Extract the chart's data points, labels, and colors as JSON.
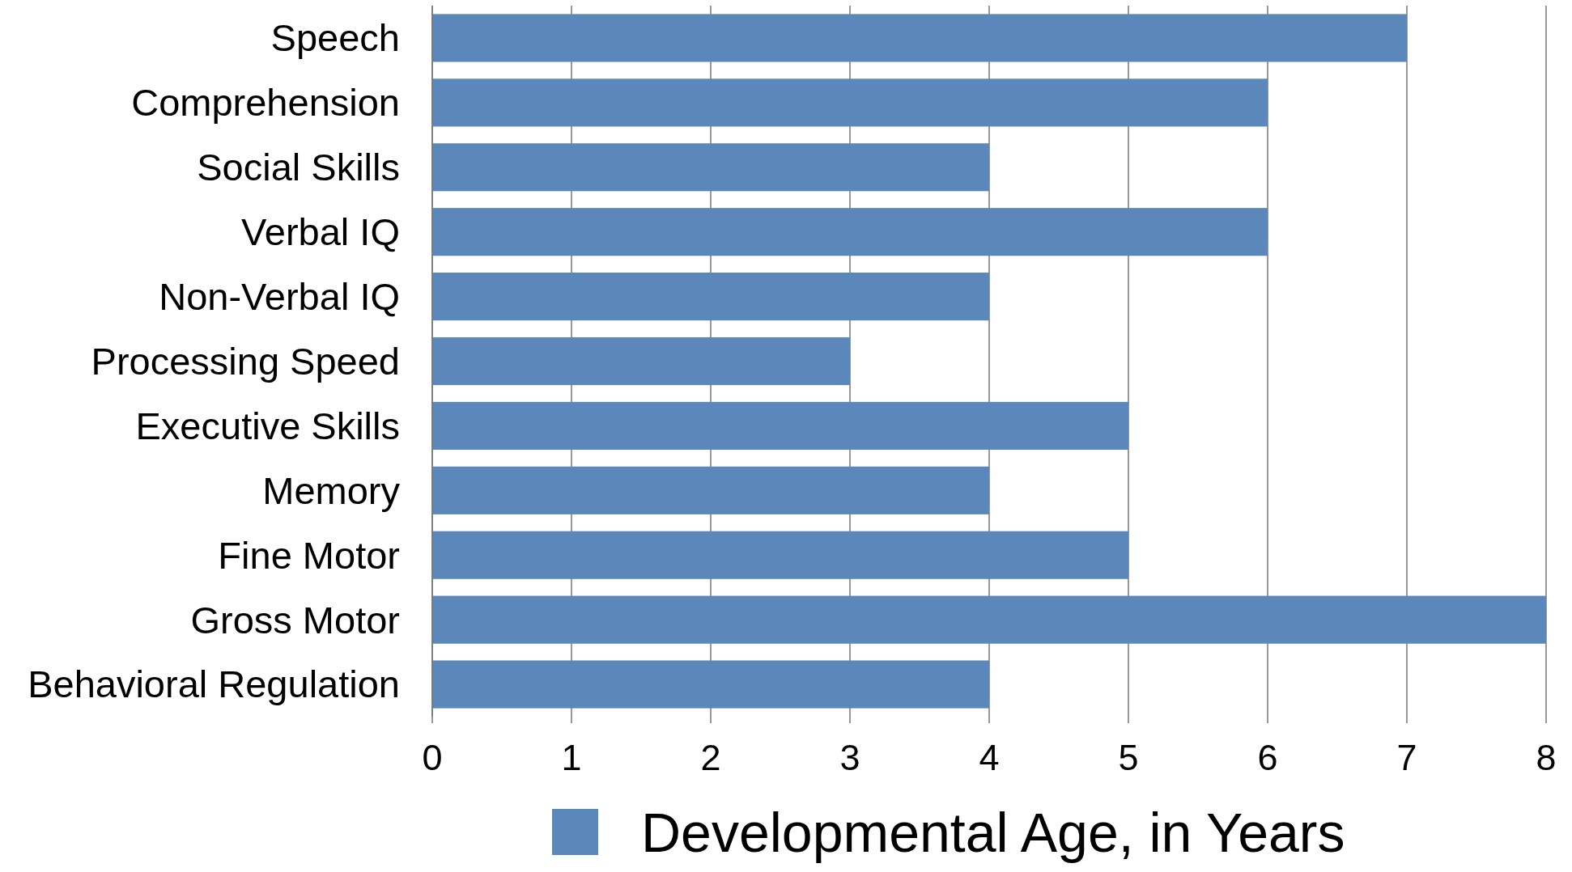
{
  "chart_data": {
    "type": "bar",
    "orientation": "horizontal",
    "categories": [
      "Speech",
      "Comprehension",
      "Social Skills",
      "Verbal IQ",
      "Non-Verbal IQ",
      "Processing Speed",
      "Executive Skills",
      "Memory",
      "Fine Motor",
      "Gross Motor",
      "Behavioral Regulation"
    ],
    "series": [
      {
        "name": "Developmental Age, in Years",
        "color": "#5b87bb",
        "values": [
          7,
          6,
          4,
          6,
          4,
          3,
          5,
          4,
          5,
          8,
          4
        ]
      }
    ],
    "xlim": [
      0,
      8
    ],
    "xticks": [
      0,
      1,
      2,
      3,
      4,
      5,
      6,
      7,
      8
    ],
    "grid": "x",
    "legend": "bottom"
  }
}
